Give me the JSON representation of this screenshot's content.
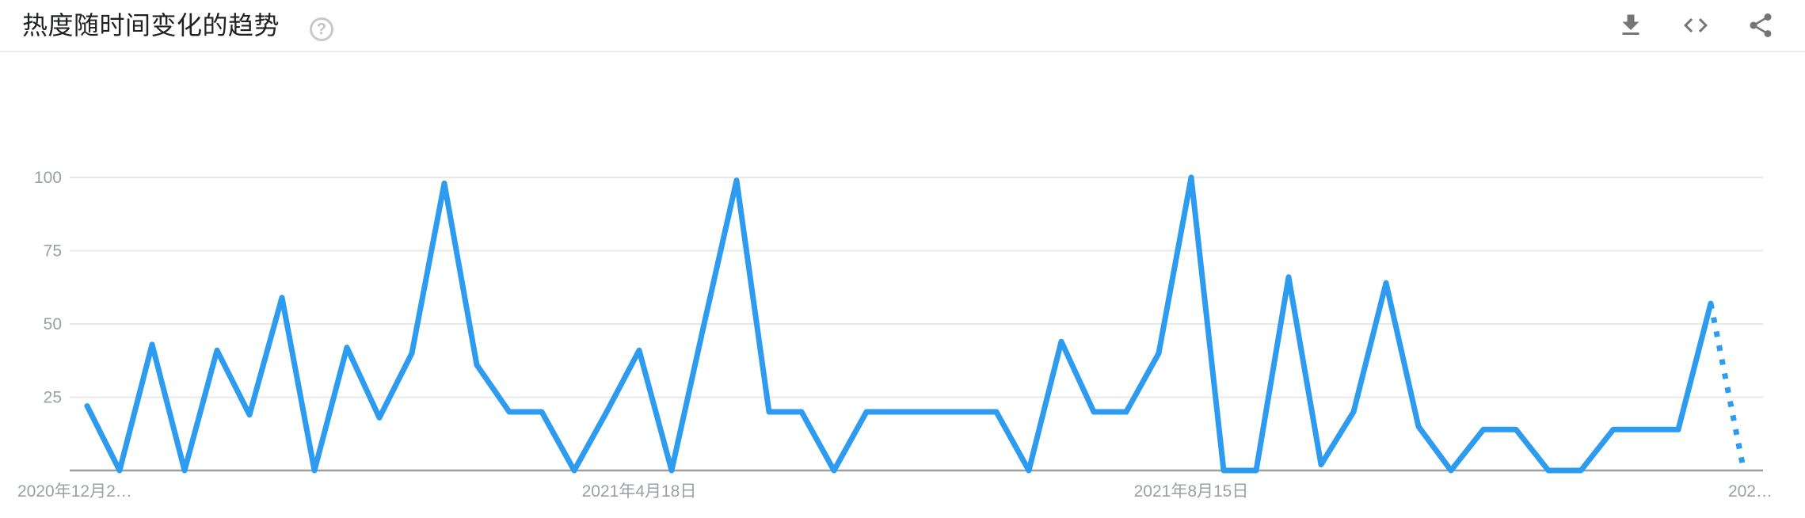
{
  "header": {
    "title": "热度随时间变化的趋势",
    "help_glyph": "?",
    "actions": {
      "download": "download-icon",
      "embed": "embed-code-icon",
      "share": "share-icon"
    }
  },
  "chart_data": {
    "type": "line",
    "title": "热度随时间变化的趋势",
    "x_unit": "week",
    "x_tick_labels": [
      {
        "text": "2020年12月2…",
        "index": 0,
        "align": "start"
      },
      {
        "text": "2021年4月18日",
        "index": 17,
        "align": "middle"
      },
      {
        "text": "2021年8月15日",
        "index": 34,
        "align": "middle"
      },
      {
        "text": "202…",
        "index": 51,
        "align": "end"
      }
    ],
    "y_ticks": [
      25,
      50,
      75,
      100
    ],
    "ylim": [
      0,
      100
    ],
    "grid": "horizontal",
    "legend": "none",
    "line_color": "#2d9bf0",
    "grid_color": "#e8e8e8",
    "axis_color": "#9e9e9e",
    "tick_label_color": "#9aa0a6",
    "series": [
      {
        "name": "热度",
        "values": [
          22,
          0,
          43,
          0,
          41,
          19,
          59,
          0,
          42,
          18,
          40,
          98,
          36,
          20,
          20,
          0,
          20,
          41,
          0,
          50,
          99,
          20,
          20,
          0,
          20,
          20,
          20,
          20,
          20,
          0,
          44,
          20,
          20,
          40,
          100,
          0,
          0,
          66,
          2,
          20,
          64,
          15,
          0,
          14,
          14,
          0,
          0,
          14,
          14,
          14,
          57,
          1
        ],
        "dotted_tail_segments": 1
      }
    ]
  }
}
